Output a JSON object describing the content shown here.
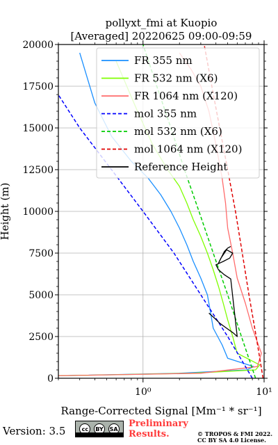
{
  "chart_data": {
    "type": "line",
    "title": "pollyxt_fmi at Kuopio",
    "subtitle": "[Averaged] 20220625 09:00-09:59",
    "xlabel": "Range-Corrected Signal [Mm⁻¹ * sr⁻¹]",
    "ylabel": "Height (m)",
    "xscale": "log",
    "xlim": [
      0.2,
      10
    ],
    "ylim": [
      0,
      20000
    ],
    "x_ticks": [
      {
        "value": 1,
        "label": "10⁰"
      },
      {
        "value": 10,
        "label": "10¹"
      }
    ],
    "y_ticks": [
      0,
      2500,
      5000,
      7500,
      10000,
      12500,
      15000,
      17500,
      20000
    ],
    "y_tick_labels": [
      "0",
      "2500",
      "5000",
      "7500",
      "10000",
      "12500",
      "15000",
      "17500",
      "20000"
    ],
    "grid": true,
    "legend_position": "top-right",
    "series": [
      {
        "name": "FR 355 nm",
        "color": "#1a8fff",
        "style": "solid",
        "x": [
          0.2,
          2.0,
          7.2,
          8.2,
          5.0,
          4.5,
          3.8,
          3.6,
          3.4,
          3.0,
          2.6,
          2.3,
          2.0,
          1.7,
          1.4,
          1.1,
          0.8,
          0.55,
          0.4,
          0.3
        ],
        "y": [
          150,
          300,
          500,
          700,
          1200,
          2000,
          3000,
          4000,
          5000,
          6000,
          7000,
          8000,
          9000,
          10000,
          11000,
          12000,
          13000,
          14500,
          16500,
          19500
        ]
      },
      {
        "name": "FR 532 nm (X6)",
        "color": "#7fff00",
        "style": "solid",
        "x": [
          0.2,
          2.5,
          8.5,
          9.2,
          6.0,
          5.5,
          5.0,
          4.6,
          4.2,
          3.8,
          3.4,
          3.0,
          2.6,
          2.3,
          2.0,
          1.6,
          1.2,
          0.9,
          0.6
        ],
        "y": [
          150,
          300,
          500,
          800,
          1500,
          2500,
          3500,
          4500,
          5500,
          6500,
          7500,
          8500,
          9500,
          10500,
          11500,
          12500,
          14000,
          16000,
          19000
        ]
      },
      {
        "name": "FR 1064 nm (X120)",
        "color": "#ff6b6b",
        "style": "solid",
        "x": [
          0.2,
          3.0,
          8.8,
          9.5,
          8.0,
          7.0,
          6.0,
          5.5,
          5.0,
          4.8,
          4.5,
          4.0,
          3.5,
          3.0,
          2.5,
          2.0
        ],
        "y": [
          150,
          300,
          700,
          1500,
          3000,
          4500,
          6000,
          7500,
          9000,
          10500,
          12000,
          14000,
          16000,
          17500,
          18500,
          19500
        ]
      },
      {
        "name": "mol 355 nm",
        "color": "#0000ff",
        "style": "dashed",
        "x": [
          8.0,
          5.0,
          3.0,
          1.8,
          1.0,
          0.55,
          0.3,
          0.18
        ],
        "y": [
          0,
          2500,
          5000,
          7500,
          10000,
          12500,
          15000,
          17500
        ]
      },
      {
        "name": "mol 532 nm (X6)",
        "color": "#00cc00",
        "style": "dashed",
        "x": [
          8.5,
          6.5,
          5.0,
          3.8,
          2.9,
          2.2,
          1.7,
          1.3,
          1.0
        ],
        "y": [
          0,
          2500,
          5000,
          7500,
          10000,
          12500,
          15000,
          17500,
          20000
        ]
      },
      {
        "name": "mol 1064 nm (X120)",
        "color": "#e00000",
        "style": "dashed",
        "x": [
          9.8,
          8.6,
          7.5,
          6.6,
          5.8,
          5.0,
          4.3,
          3.7,
          3.2
        ],
        "y": [
          0,
          2500,
          5000,
          7500,
          10000,
          12500,
          15000,
          17500,
          20000
        ]
      },
      {
        "name": "Reference Height",
        "color": "#000000",
        "style": "solid",
        "x": [
          3.5,
          3.9,
          4.3,
          4.9,
          5.6,
          6.0,
          5.3,
          4.7,
          4.2,
          4.0,
          4.6,
          5.2,
          5.5,
          4.9,
          4.4,
          4.2,
          4.7,
          5.0,
          5.3
        ],
        "y": [
          3900,
          3600,
          3300,
          3000,
          2700,
          2500,
          5950,
          6200,
          6500,
          6800,
          7000,
          7200,
          7500,
          7700,
          7200,
          6900,
          7600,
          7800,
          7900
        ]
      }
    ]
  },
  "footer": {
    "version": "Version: 3.5",
    "cc_by": "BY",
    "cc_sa": "SA",
    "preliminary_line1": "Preliminary",
    "preliminary_line2": "Results.",
    "copyright_line1": "© TROPOS & FMI 2022.",
    "copyright_line2": "CC BY SA 4.0 License."
  }
}
